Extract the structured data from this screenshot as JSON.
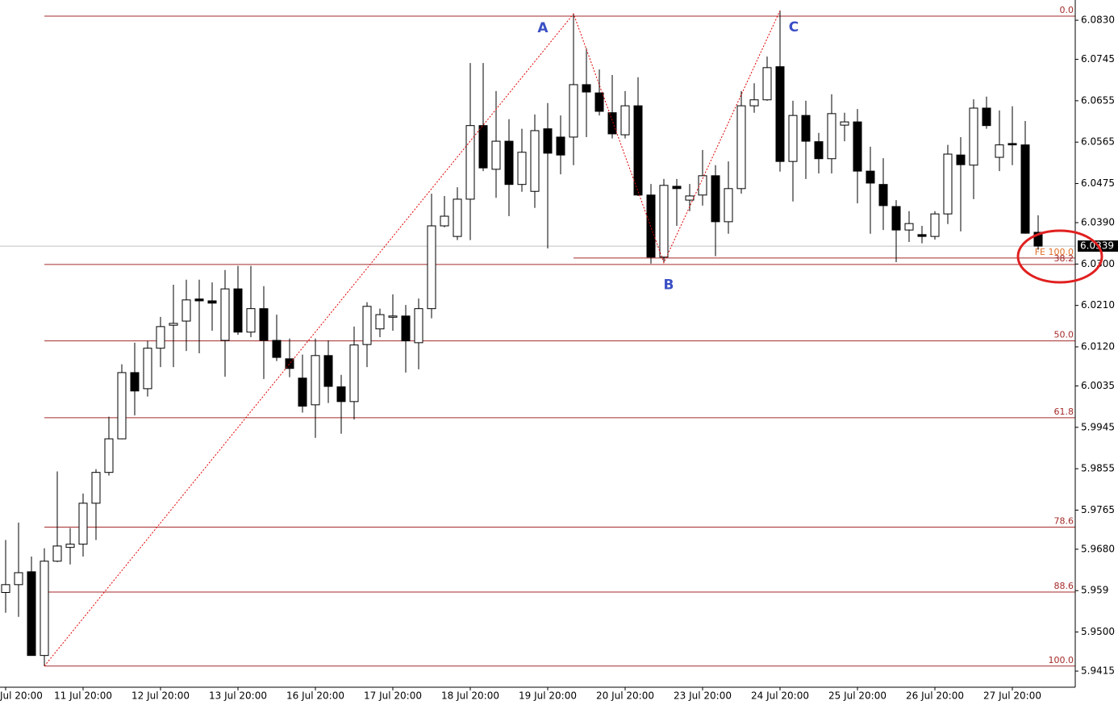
{
  "chart_data": {
    "type": "candlestick",
    "categories": [
      "Jul 20:00",
      null,
      null,
      null,
      null,
      null,
      "11 Jul 20:00",
      null,
      null,
      null,
      null,
      null,
      "12 Jul 20:00",
      null,
      null,
      null,
      null,
      null,
      "13 Jul 20:00",
      null,
      null,
      null,
      null,
      null,
      "16 Jul 20:00",
      null,
      null,
      null,
      null,
      null,
      "17 Jul 20:00",
      null,
      null,
      null,
      null,
      null,
      "18 Jul 20:00",
      null,
      null,
      null,
      null,
      null,
      "19 Jul 20:00",
      null,
      null,
      null,
      null,
      null,
      "20 Jul 20:00",
      null,
      null,
      null,
      null,
      null,
      "23 Jul 20:00",
      null,
      null,
      null,
      null,
      null,
      "24 Jul 20:00",
      null,
      null,
      null,
      null,
      null,
      "25 Jul 20:00",
      null,
      null,
      null,
      null,
      null,
      "26 Jul 20:00",
      null,
      null,
      null,
      null,
      null,
      "27 Jul 20:00",
      null,
      null
    ],
    "open": [
      5.9586,
      5.9603,
      5.9631,
      5.9449,
      5.9654,
      5.9684,
      5.9691,
      5.978,
      5.9847,
      5.992,
      6.0064,
      6.0029,
      6.0117,
      6.0167,
      6.0176,
      6.0224,
      6.022,
      6.0134,
      6.0246,
      6.0152,
      6.0203,
      6.0134,
      6.0094,
      6.0052,
      5.9994,
      6.0101,
      6.0033,
      6.0001,
      6.0125,
      6.0159,
      6.0185,
      6.0187,
      6.0129,
      6.0203,
      6.0383,
      6.036,
      6.0441,
      6.0601,
      6.0506,
      6.0567,
      6.0473,
      6.0458,
      6.0594,
      6.0576,
      6.0576,
      6.069,
      6.0672,
      6.0629,
      6.0581,
      6.0644,
      6.045,
      6.0315,
      6.0469,
      6.0439,
      6.045,
      6.0492,
      6.0392,
      6.0464,
      6.0644,
      6.0657,
      6.0729,
      6.0523,
      6.0623,
      6.0566,
      6.0529,
      6.0602,
      6.0609,
      6.0502,
      6.0473,
      6.0425,
      6.0374,
      6.0364,
      6.036,
      6.0409,
      6.0537,
      6.0515,
      6.0639,
      6.0532,
      6.0562,
      6.0559,
      6.0369
    ],
    "high": [
      5.97,
      5.9738,
      5.9664,
      5.9682,
      5.9849,
      5.9726,
      5.9801,
      5.9854,
      5.9968,
      6.0082,
      6.0129,
      6.0133,
      6.0185,
      6.0255,
      6.0266,
      6.0266,
      6.026,
      6.0287,
      6.0296,
      6.0296,
      6.0252,
      6.019,
      6.0138,
      6.0103,
      6.0138,
      6.0134,
      6.0059,
      6.0164,
      6.0217,
      6.0203,
      6.0234,
      6.0211,
      6.0225,
      6.0453,
      6.0448,
      6.0467,
      6.0737,
      6.0737,
      6.0676,
      6.0615,
      6.0594,
      6.0625,
      6.065,
      6.0623,
      6.0844,
      6.0769,
      6.0723,
      6.0711,
      6.0676,
      6.0706,
      6.0474,
      6.0485,
      6.0485,
      6.0474,
      6.0548,
      6.0515,
      6.0523,
      6.0676,
      6.0693,
      6.0751,
      6.0851,
      6.0655,
      6.0655,
      6.0585,
      6.0669,
      6.0629,
      6.0637,
      6.0555,
      6.053,
      6.0439,
      6.0415,
      6.0383,
      6.0415,
      6.0559,
      6.0576,
      6.0658,
      6.0664,
      6.0634,
      6.0643,
      6.0611,
      6.0406
    ],
    "low": [
      5.9542,
      5.9533,
      5.9449,
      5.9426,
      5.9652,
      5.9647,
      5.9664,
      5.97,
      5.984,
      5.9919,
      5.9971,
      6.0012,
      6.0076,
      6.0076,
      6.0111,
      6.0106,
      6.0155,
      6.0055,
      6.0146,
      6.0141,
      6.005,
      6.0089,
      6.0054,
      5.9977,
      5.9922,
      5.9998,
      5.9931,
      5.9962,
      6.0076,
      6.0141,
      6.0155,
      6.0064,
      6.0071,
      6.0182,
      6.038,
      6.0352,
      6.0352,
      6.0502,
      6.0444,
      6.0404,
      6.0457,
      6.0422,
      6.0334,
      6.0495,
      6.0515,
      6.0576,
      6.0623,
      6.0573,
      6.0573,
      6.0448,
      6.0301,
      6.0303,
      6.0383,
      6.0415,
      6.0427,
      6.0317,
      6.0366,
      6.0453,
      6.0629,
      6.0655,
      6.0501,
      6.0436,
      6.0485,
      6.0497,
      6.0497,
      6.0567,
      6.0432,
      6.0366,
      6.0374,
      6.0304,
      6.0348,
      6.0345,
      6.0353,
      6.0387,
      6.0371,
      6.0441,
      6.0594,
      6.0502,
      6.0515,
      6.0366,
      6.0331
    ],
    "close": [
      5.9603,
      5.9629,
      5.9449,
      5.9654,
      5.9687,
      5.9691,
      5.978,
      5.9847,
      5.992,
      6.0064,
      6.0024,
      6.0117,
      6.0164,
      6.0171,
      6.0222,
      6.022,
      6.0215,
      6.0246,
      6.0152,
      6.0203,
      6.0134,
      6.0097,
      6.0073,
      5.9991,
      6.0101,
      6.0034,
      6.0001,
      6.0124,
      6.0208,
      6.019,
      6.0187,
      6.0133,
      6.0203,
      6.0383,
      6.0404,
      6.0441,
      6.0601,
      6.0509,
      6.0567,
      6.0473,
      6.0543,
      6.059,
      6.0541,
      6.0537,
      6.069,
      6.0674,
      6.0632,
      6.0583,
      6.0644,
      6.045,
      6.0315,
      6.0471,
      6.0464,
      6.0448,
      6.0492,
      6.0392,
      6.0464,
      6.0644,
      6.0657,
      6.0727,
      6.0523,
      6.0623,
      6.0567,
      6.0529,
      6.0627,
      6.0609,
      6.0502,
      6.0476,
      6.0427,
      6.0374,
      6.0388,
      6.036,
      6.0409,
      6.0539,
      6.0516,
      6.0639,
      6.0601,
      6.0559,
      6.0559,
      6.0367,
      6.0339
    ],
    "ylim": [
      5.938,
      6.0874
    ],
    "yticks": [
      {
        "value": 6.083,
        "label": "6.0830"
      },
      6.0745,
      6.0655,
      6.0565,
      6.0475,
      {
        "value": 6.039,
        "label": "6.0390"
      },
      {
        "value": 6.03,
        "label": "6.0300"
      },
      {
        "value": 6.021,
        "label": "6.0210"
      },
      {
        "value": 6.012,
        "label": "6.0120"
      },
      6.0035,
      5.9945,
      5.9855,
      5.9765,
      {
        "value": 5.968,
        "label": "5.9680"
      },
      5.959,
      {
        "value": 5.95,
        "label": "5.9500"
      },
      5.9415
    ],
    "current_price": 6.0339,
    "fib": {
      "color": "#a52a2a",
      "from_bar": 3,
      "levels": [
        {
          "label": "0.0",
          "price": 6.0839
        },
        {
          "label": "38.2",
          "price": 6.0299
        },
        {
          "label": "50.0",
          "price": 6.0133
        },
        {
          "label": "61.8",
          "price": 5.9966
        },
        {
          "label": "78.6",
          "price": 5.9728
        },
        {
          "label": "88.6",
          "price": 5.9587
        },
        {
          "label": "100.0",
          "price": 5.9426
        }
      ]
    },
    "expansion": {
      "color": "#e0702a",
      "from_bar": 44,
      "label": "FE 100.0",
      "price": 6.0313
    },
    "zigzag": {
      "color": "#e00000",
      "bars": [
        3,
        44,
        51,
        60
      ],
      "prices": [
        5.9426,
        6.0844,
        6.0303,
        6.0851
      ],
      "labels": [
        null,
        "A",
        "B",
        "C"
      ],
      "label_color": "#3a4fc4"
    }
  }
}
